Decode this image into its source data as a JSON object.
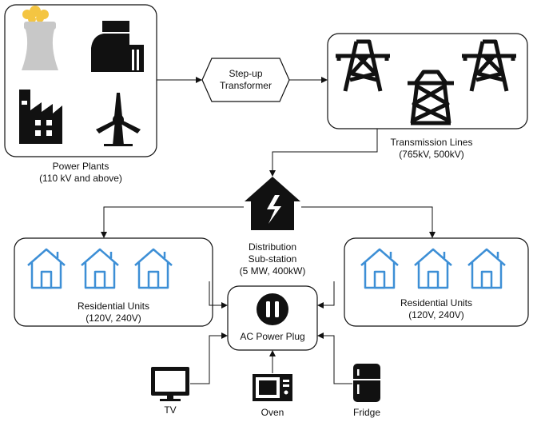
{
  "power_plants": {
    "line1": "Power Plants",
    "line2": "(110 kV and above)"
  },
  "step_up": {
    "line1": "Step-up",
    "line2": "Transformer"
  },
  "transmission": {
    "line1": "Transmission Lines",
    "line2": "(765kV, 500kV)"
  },
  "distribution": {
    "line1": "Distribution",
    "line2": "Sub-station",
    "line3": "(5 MW, 400kW)"
  },
  "residential_left": {
    "line1": "Residential Units",
    "line2": "(120V, 240V)"
  },
  "residential_right": {
    "line1": "Residential Units",
    "line2": "(120V, 240V)"
  },
  "ac_plug": {
    "label": "AC Power Plug"
  },
  "appliances": {
    "tv": "TV",
    "oven": "Oven",
    "fridge": "Fridge"
  },
  "colors": {
    "house_blue": "#3d8fd6",
    "smoke": "#f4c542",
    "tower_grey": "#c8c8c8",
    "ink": "#111111"
  }
}
